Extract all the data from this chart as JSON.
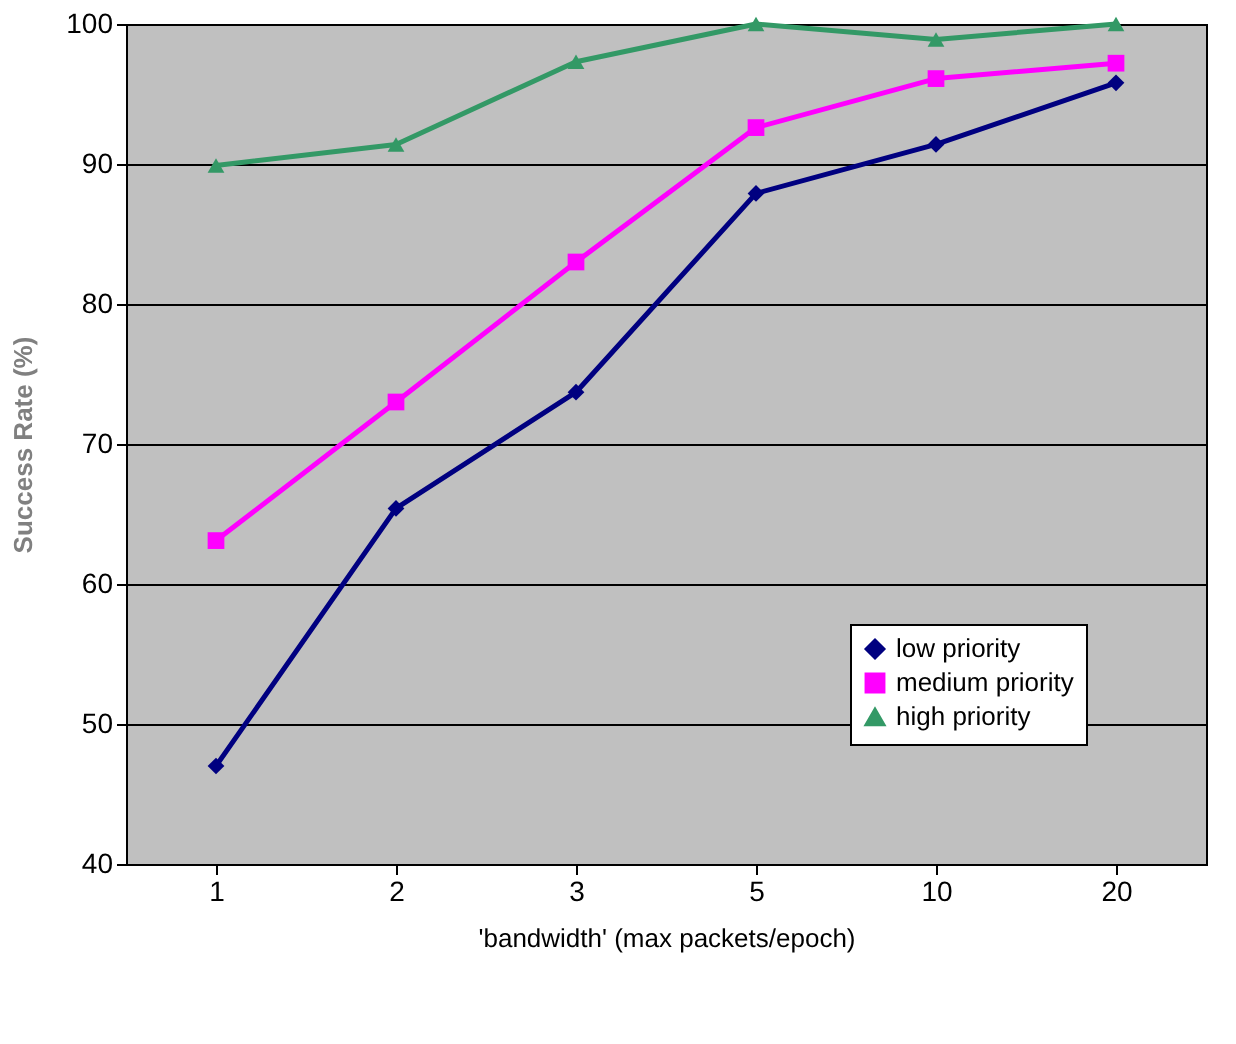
{
  "chart_data": {
    "type": "line",
    "xlabel": "'bandwidth' (max packets/epoch)",
    "ylabel": "Success Rate (%)",
    "categories": [
      "1",
      "2",
      "3",
      "5",
      "10",
      "20"
    ],
    "series": [
      {
        "name": "low priority",
        "color": "#000080",
        "marker": "diamond",
        "values": [
          47.0,
          65.4,
          73.7,
          87.9,
          91.4,
          95.8
        ]
      },
      {
        "name": "medium priority",
        "color": "#ff00ff",
        "marker": "square",
        "values": [
          63.1,
          73.0,
          83.0,
          92.6,
          96.1,
          97.2
        ]
      },
      {
        "name": "high priority",
        "color": "#339966",
        "marker": "triangle",
        "values": [
          89.9,
          91.4,
          97.3,
          100.0,
          98.9,
          100.0
        ]
      }
    ],
    "ylim": [
      40,
      100
    ],
    "yticks": [
      40,
      50,
      60,
      70,
      80,
      90,
      100
    ],
    "grid": "y",
    "legend": "bottom right",
    "line_style": "solid"
  }
}
